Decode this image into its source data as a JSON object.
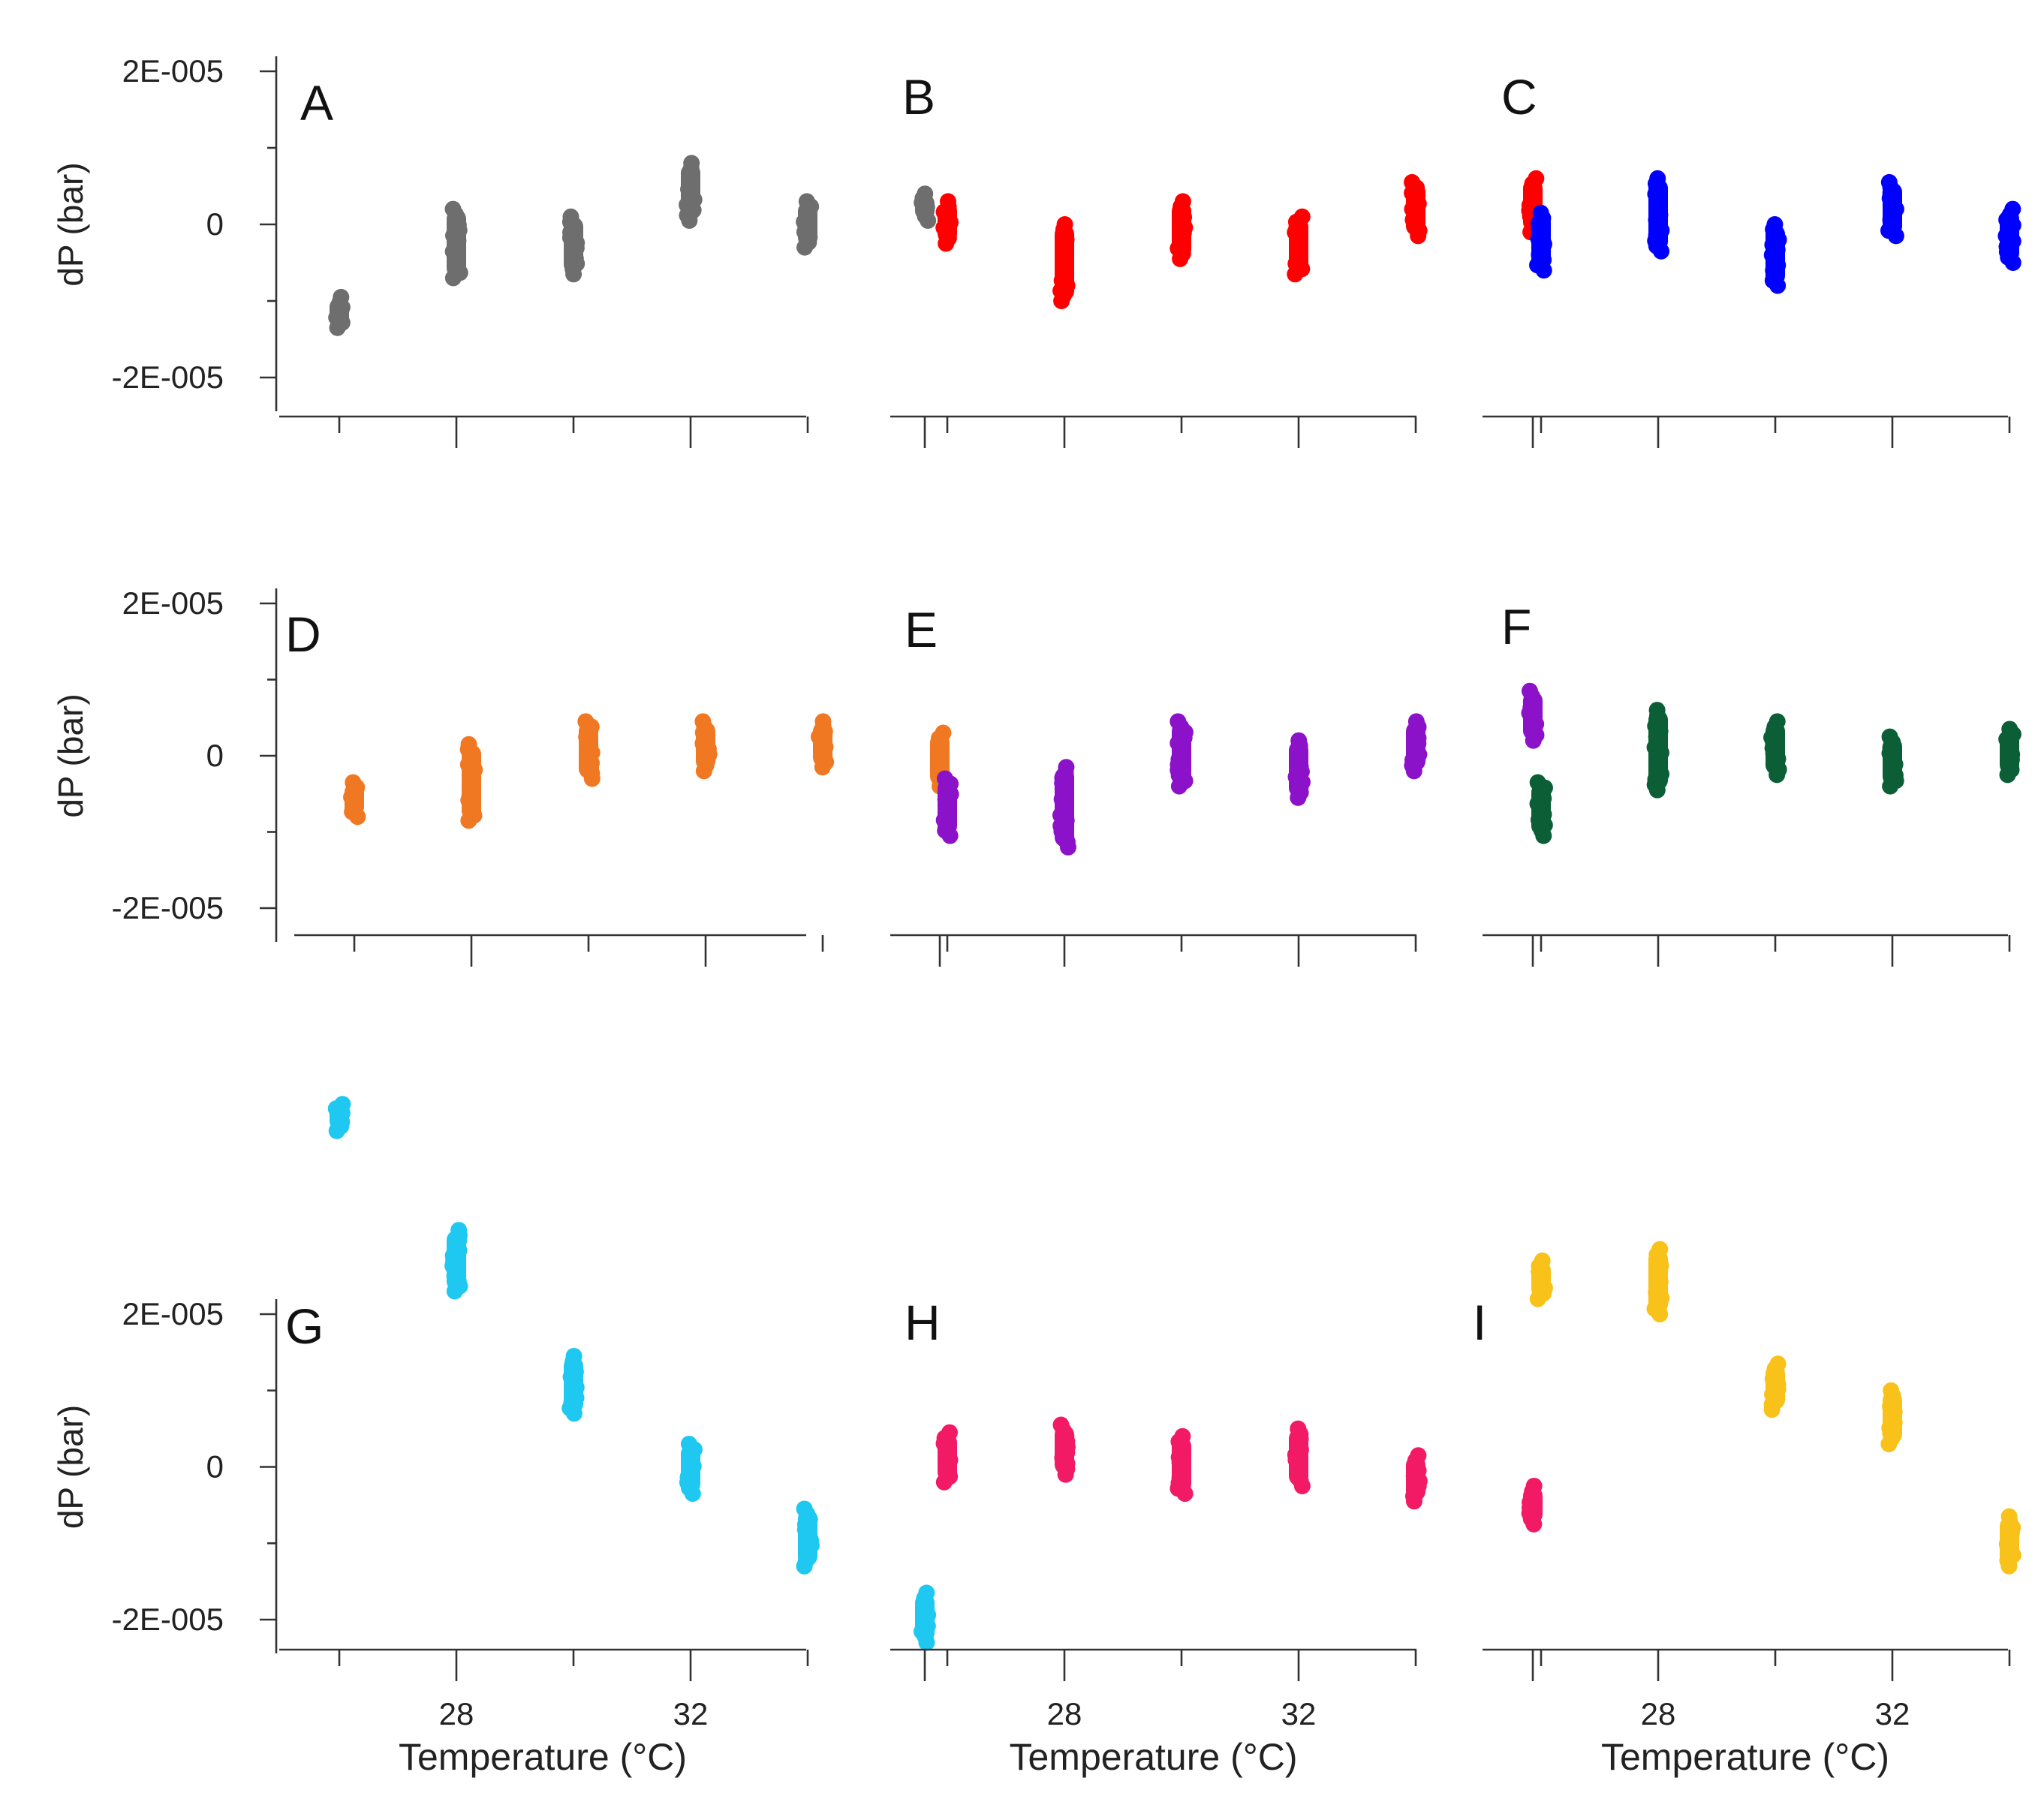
{
  "chart_data": [
    {
      "type": "scatter",
      "panel": "A",
      "color": "#6e6e6e",
      "x_categories": [
        26,
        28,
        30,
        32,
        34,
        36
      ],
      "ylim": [
        -2e-05,
        2e-05
      ],
      "yticks": [
        "2E-005",
        "0",
        "-2E-005"
      ],
      "ylabel": "dP (bar)",
      "xticks": [],
      "xlabel": "",
      "series": [
        {
          "x": 26,
          "y_min": -1.35e-05,
          "y_max": -9.5e-06
        },
        {
          "x": 28,
          "y_min": -7e-06,
          "y_max": 2e-06
        },
        {
          "x": 30,
          "y_min": -6.5e-06,
          "y_max": 1e-06
        },
        {
          "x": 32,
          "y_min": 5e-07,
          "y_max": 8e-06
        },
        {
          "x": 34,
          "y_min": -3e-06,
          "y_max": 3e-06
        },
        {
          "x": 36,
          "y_min": 5e-07,
          "y_max": 4e-06
        }
      ]
    },
    {
      "type": "scatter",
      "panel": "B",
      "color": "#ff0000",
      "x_categories": [
        26,
        28,
        30,
        32,
        34,
        36
      ],
      "ylim": [
        -2e-05,
        2e-05
      ],
      "yticks": [],
      "ylabel": "",
      "xticks": [],
      "xlabel": "",
      "series": [
        {
          "x": 26,
          "y_min": -2.5e-06,
          "y_max": 3e-06
        },
        {
          "x": 28,
          "y_min": -1e-05,
          "y_max": 0.0
        },
        {
          "x": 30,
          "y_min": -4.5e-06,
          "y_max": 3e-06
        },
        {
          "x": 32,
          "y_min": -6.5e-06,
          "y_max": 1e-06
        },
        {
          "x": 34,
          "y_min": -1.5e-06,
          "y_max": 5.5e-06
        },
        {
          "x": 36,
          "y_min": -1e-06,
          "y_max": 6e-06
        }
      ]
    },
    {
      "type": "scatter",
      "panel": "C",
      "color": "#0000ff",
      "x_categories": [
        26,
        28,
        30,
        32,
        34,
        36
      ],
      "ylim": [
        -2e-05,
        2e-05
      ],
      "yticks": [],
      "ylabel": "",
      "xticks": [],
      "xlabel": "",
      "series": [
        {
          "x": 26,
          "y_min": -6e-06,
          "y_max": 1.5e-06
        },
        {
          "x": 28,
          "y_min": -3.5e-06,
          "y_max": 6e-06
        },
        {
          "x": 30,
          "y_min": -8e-06,
          "y_max": 0.0
        },
        {
          "x": 32,
          "y_min": -1.5e-06,
          "y_max": 5.5e-06
        },
        {
          "x": 34,
          "y_min": -5e-06,
          "y_max": 2e-06
        },
        {
          "x": 36,
          "y_min": 5e-07,
          "y_max": 6.5e-06
        }
      ]
    },
    {
      "type": "scatter",
      "panel": "D",
      "color": "#f07822",
      "x_categories": [
        26,
        28,
        30,
        32,
        34,
        36
      ],
      "ylim": [
        -2e-05,
        2e-05
      ],
      "yticks": [
        "2E-005",
        "0",
        "-2E-005"
      ],
      "ylabel": "dP (bar)",
      "xticks": [],
      "xlabel": "",
      "series": [
        {
          "x": 26,
          "y_min": -8e-06,
          "y_max": -3.5e-06
        },
        {
          "x": 28,
          "y_min": -8.5e-06,
          "y_max": 1.5e-06
        },
        {
          "x": 30,
          "y_min": -3e-06,
          "y_max": 4.5e-06
        },
        {
          "x": 32,
          "y_min": -2e-06,
          "y_max": 4.5e-06
        },
        {
          "x": 34,
          "y_min": -1.5e-06,
          "y_max": 4.5e-06
        },
        {
          "x": 36,
          "y_min": -4e-06,
          "y_max": 3e-06
        }
      ]
    },
    {
      "type": "scatter",
      "panel": "E",
      "color": "#8b12c8",
      "x_categories": [
        26,
        28,
        30,
        32,
        34,
        36
      ],
      "ylim": [
        -2e-05,
        2e-05
      ],
      "yticks": [],
      "ylabel": "",
      "xticks": [],
      "xlabel": "",
      "series": [
        {
          "x": 26,
          "y_min": -1.05e-05,
          "y_max": -3e-06
        },
        {
          "x": 28,
          "y_min": -1.2e-05,
          "y_max": -1.5e-06
        },
        {
          "x": 30,
          "y_min": -4e-06,
          "y_max": 4.5e-06
        },
        {
          "x": 32,
          "y_min": -5.5e-06,
          "y_max": 2e-06
        },
        {
          "x": 34,
          "y_min": -2e-06,
          "y_max": 4.5e-06
        },
        {
          "x": 36,
          "y_min": 2e-06,
          "y_max": 8.5e-06
        }
      ]
    },
    {
      "type": "scatter",
      "panel": "F",
      "color": "#0b5e36",
      "x_categories": [
        26,
        28,
        30,
        32,
        34,
        36
      ],
      "ylim": [
        -2e-05,
        2e-05
      ],
      "yticks": [],
      "ylabel": "",
      "xticks": [],
      "xlabel": "",
      "series": [
        {
          "x": 26,
          "y_min": -1.05e-05,
          "y_max": -3.5e-06
        },
        {
          "x": 28,
          "y_min": -4.5e-06,
          "y_max": 6e-06
        },
        {
          "x": 30,
          "y_min": -2.5e-06,
          "y_max": 4.5e-06
        },
        {
          "x": 32,
          "y_min": -4e-06,
          "y_max": 2.5e-06
        },
        {
          "x": 34,
          "y_min": -2.5e-06,
          "y_max": 3.5e-06
        },
        {
          "x": 36,
          "y_min": -3.5e-06,
          "y_max": 5e-06
        }
      ]
    },
    {
      "type": "scatter",
      "panel": "G",
      "color": "#1ec8f0",
      "x_categories": [
        26,
        28,
        30,
        32,
        34,
        36
      ],
      "ylim": [
        -2e-05,
        2e-05
      ],
      "yticks": [
        "2E-005",
        "0",
        "-2E-005"
      ],
      "ylabel": "dP (bar)",
      "xticks": [
        "28",
        "32"
      ],
      "xlabel": "Temperature (°C)",
      "series": [
        {
          "x": 26,
          "y_min": 4.4e-05,
          "y_max": 4.75e-05
        },
        {
          "x": 28,
          "y_min": 2.3e-05,
          "y_max": 3.1e-05
        },
        {
          "x": 30,
          "y_min": 7e-06,
          "y_max": 1.45e-05
        },
        {
          "x": 32,
          "y_min": -3.5e-06,
          "y_max": 3e-06
        },
        {
          "x": 34,
          "y_min": -1.3e-05,
          "y_max": -5.5e-06
        },
        {
          "x": 36,
          "y_min": -2.3e-05,
          "y_max": -1.65e-05
        }
      ]
    },
    {
      "type": "scatter",
      "panel": "H",
      "color": "#f21a64",
      "x_categories": [
        26,
        28,
        30,
        32,
        34,
        36
      ],
      "ylim": [
        -2e-05,
        2e-05
      ],
      "yticks": [],
      "ylabel": "",
      "xticks": [
        "28",
        "32"
      ],
      "xlabel": "Temperature (°C)",
      "series": [
        {
          "x": 26,
          "y_min": -2e-06,
          "y_max": 4.5e-06
        },
        {
          "x": 28,
          "y_min": -1e-06,
          "y_max": 5.5e-06
        },
        {
          "x": 30,
          "y_min": -3.5e-06,
          "y_max": 4e-06
        },
        {
          "x": 32,
          "y_min": -2.5e-06,
          "y_max": 5e-06
        },
        {
          "x": 34,
          "y_min": -4.5e-06,
          "y_max": 1.5e-06
        },
        {
          "x": 36,
          "y_min": -7.5e-06,
          "y_max": -2.5e-06
        }
      ]
    },
    {
      "type": "scatter",
      "panel": "I",
      "color": "#f8c21a",
      "x_categories": [
        26,
        28,
        30,
        32,
        34,
        36
      ],
      "ylim": [
        -2e-05,
        2e-05
      ],
      "yticks": [],
      "ylabel": "",
      "xticks": [
        "28",
        "32"
      ],
      "xlabel": "Temperature (°C)",
      "series": [
        {
          "x": 26,
          "y_min": 2.2e-05,
          "y_max": 2.7e-05
        },
        {
          "x": 28,
          "y_min": 2e-05,
          "y_max": 2.85e-05
        },
        {
          "x": 30,
          "y_min": 7.5e-06,
          "y_max": 1.35e-05
        },
        {
          "x": 32,
          "y_min": 3e-06,
          "y_max": 1e-05
        },
        {
          "x": 34,
          "y_min": -1.3e-05,
          "y_max": -6.5e-06
        },
        {
          "x": 36,
          "y_min": -1.9e-05,
          "y_max": -1.4e-05
        }
      ]
    }
  ]
}
